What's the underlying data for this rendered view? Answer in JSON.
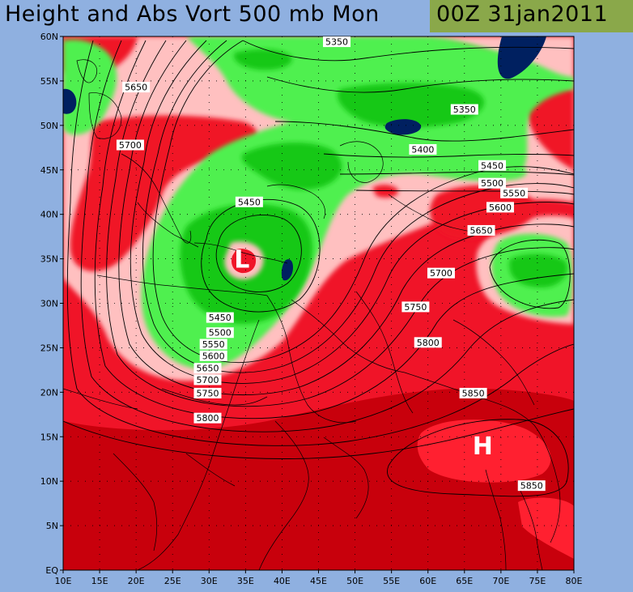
{
  "header": {
    "title": "Height and Abs Vort 500 mb Mon",
    "date": "00Z 31jan2011"
  },
  "colors": {
    "background": "#8fb0e0",
    "date_box": "#8aa84a",
    "vort_dark_red": "#c8000c",
    "vort_red": "#f01428",
    "vort_pink": "#ffc0c0",
    "vort_light_green": "#50f050",
    "vort_green": "#14c814",
    "vort_navy": "#002060"
  },
  "axes": {
    "x_ticks": [
      "10E",
      "15E",
      "20E",
      "25E",
      "30E",
      "35E",
      "40E",
      "45E",
      "50E",
      "55E",
      "60E",
      "65E",
      "70E",
      "75E",
      "80E"
    ],
    "y_ticks": [
      "60N",
      "55N",
      "50N",
      "45N",
      "40N",
      "35N",
      "30N",
      "25N",
      "20N",
      "15N",
      "10N",
      "5N",
      "EQ"
    ],
    "lon_range": [
      10,
      80
    ],
    "lat_range": [
      0,
      60
    ]
  },
  "centers": [
    {
      "symbol": "L",
      "lon": 34.5,
      "lat": 35
    },
    {
      "symbol": "H",
      "lon": 67.5,
      "lat": 14
    }
  ],
  "contour_labels": [
    {
      "text": "5350",
      "lon": 47.5,
      "lat": 59.4
    },
    {
      "text": "5650",
      "lon": 20,
      "lat": 54.3
    },
    {
      "text": "5350",
      "lon": 65,
      "lat": 51.8
    },
    {
      "text": "5700",
      "lon": 19.2,
      "lat": 47.8
    },
    {
      "text": "5400",
      "lon": 59.3,
      "lat": 47.3
    },
    {
      "text": "5450",
      "lon": 68.8,
      "lat": 45.5
    },
    {
      "text": "5500",
      "lon": 68.8,
      "lat": 43.5
    },
    {
      "text": "5450",
      "lon": 35.5,
      "lat": 41.4
    },
    {
      "text": "5550",
      "lon": 71.8,
      "lat": 42.4
    },
    {
      "text": "5600",
      "lon": 69.9,
      "lat": 40.8
    },
    {
      "text": "5650",
      "lon": 67.3,
      "lat": 38.2
    },
    {
      "text": "5700",
      "lon": 61.8,
      "lat": 33.4
    },
    {
      "text": "5750",
      "lon": 58.3,
      "lat": 29.6
    },
    {
      "text": "5450",
      "lon": 31.5,
      "lat": 28.4
    },
    {
      "text": "5500",
      "lon": 31.5,
      "lat": 26.7
    },
    {
      "text": "5800",
      "lon": 60,
      "lat": 25.6
    },
    {
      "text": "5550",
      "lon": 30.6,
      "lat": 25.4
    },
    {
      "text": "5600",
      "lon": 30.6,
      "lat": 24.1
    },
    {
      "text": "5650",
      "lon": 29.8,
      "lat": 22.7
    },
    {
      "text": "5700",
      "lon": 29.8,
      "lat": 21.4
    },
    {
      "text": "5750",
      "lon": 29.8,
      "lat": 19.9
    },
    {
      "text": "5850",
      "lon": 66.2,
      "lat": 19.9
    },
    {
      "text": "5800",
      "lon": 29.8,
      "lat": 17.1
    },
    {
      "text": "5850",
      "lon": 74.2,
      "lat": 9.5
    }
  ]
}
